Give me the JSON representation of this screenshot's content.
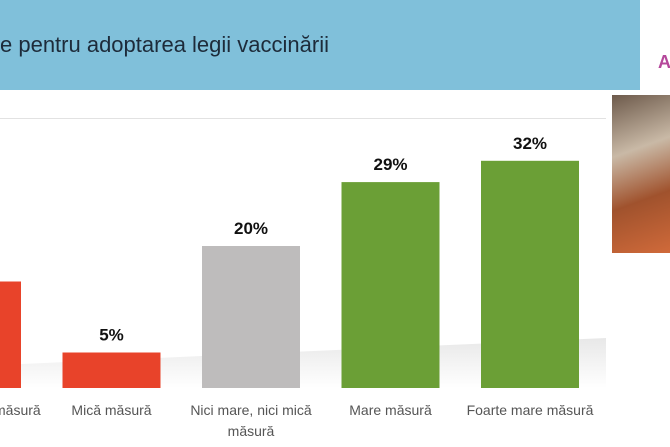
{
  "chart_data": {
    "type": "bar",
    "title": "e pentru adoptarea legii vaccinării",
    "categories": [
      "măsură",
      "Mică măsură",
      "Nici mare, nici mică măsură",
      "Mare măsură",
      "Foarte mare măsură"
    ],
    "values": [
      15,
      5,
      20,
      29,
      32
    ],
    "value_labels": [
      null,
      "5%",
      "20%",
      "29%",
      "32%"
    ],
    "colors": [
      "#e8432a",
      "#e8432a",
      "#bebcbc",
      "#6b9f36",
      "#6b9f36"
    ],
    "side_text": "A"
  }
}
